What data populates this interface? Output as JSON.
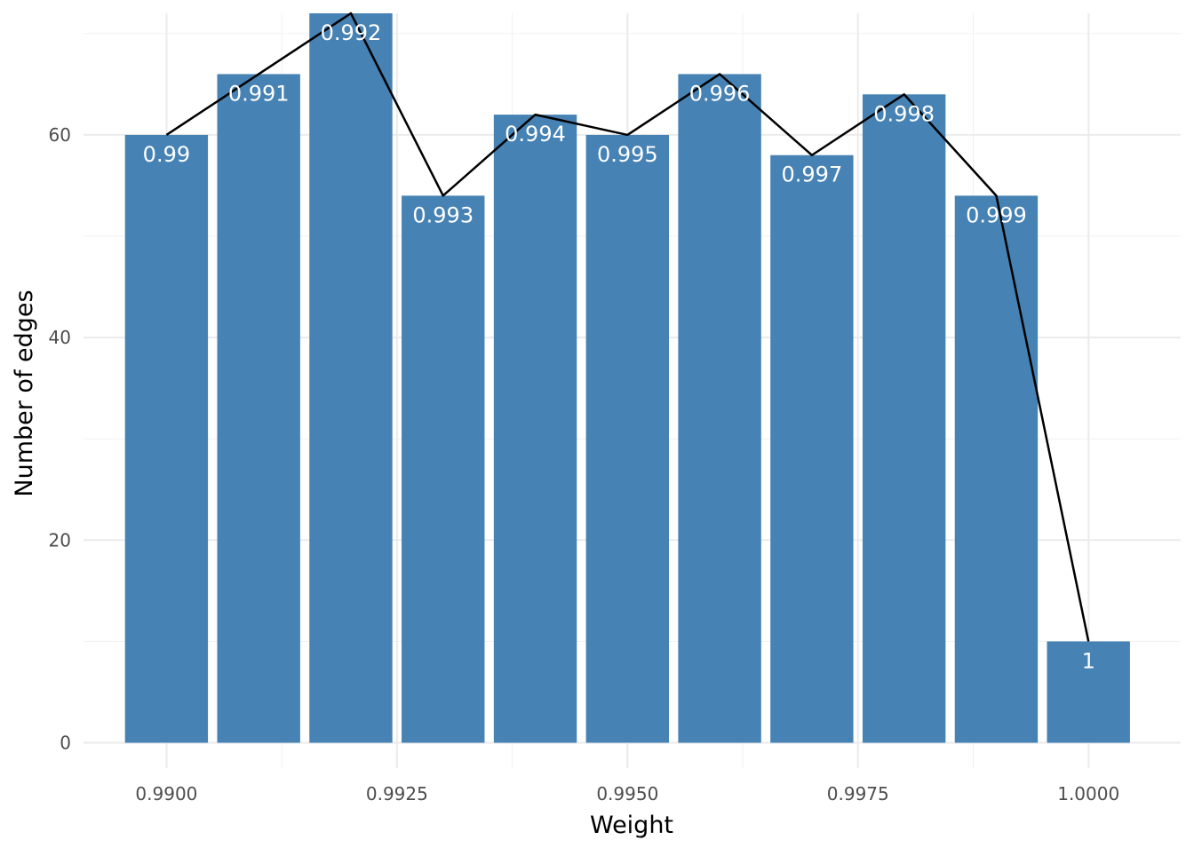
{
  "chart_data": {
    "type": "bar",
    "xlabel": "Weight",
    "ylabel": "Number of edges",
    "xlim": [
      0.9891,
      1.001
    ],
    "ylim": [
      -2.5,
      72
    ],
    "x_ticks": [
      0.99,
      0.9925,
      0.995,
      0.9975,
      1.0
    ],
    "x_tick_labels": [
      "0.9900",
      "0.9925",
      "0.9950",
      "0.9975",
      "1.0000"
    ],
    "y_ticks": [
      0,
      20,
      40,
      60
    ],
    "y_tick_labels": [
      "0",
      "20",
      "40",
      "60"
    ],
    "grid": true,
    "legend": "none",
    "bar_width": 0.0009,
    "bar_color": "#4682B4",
    "line_color": "#000000",
    "x": [
      0.99,
      0.991,
      0.992,
      0.993,
      0.994,
      0.995,
      0.996,
      0.997,
      0.998,
      0.999,
      1.0
    ],
    "values": [
      60,
      66,
      72,
      54,
      62,
      60,
      66,
      58,
      64,
      54,
      10
    ],
    "labels": [
      "0.99",
      "0.991",
      "0.992",
      "0.993",
      "0.994",
      "0.995",
      "0.996",
      "0.997",
      "0.998",
      "0.999",
      "1"
    ]
  }
}
